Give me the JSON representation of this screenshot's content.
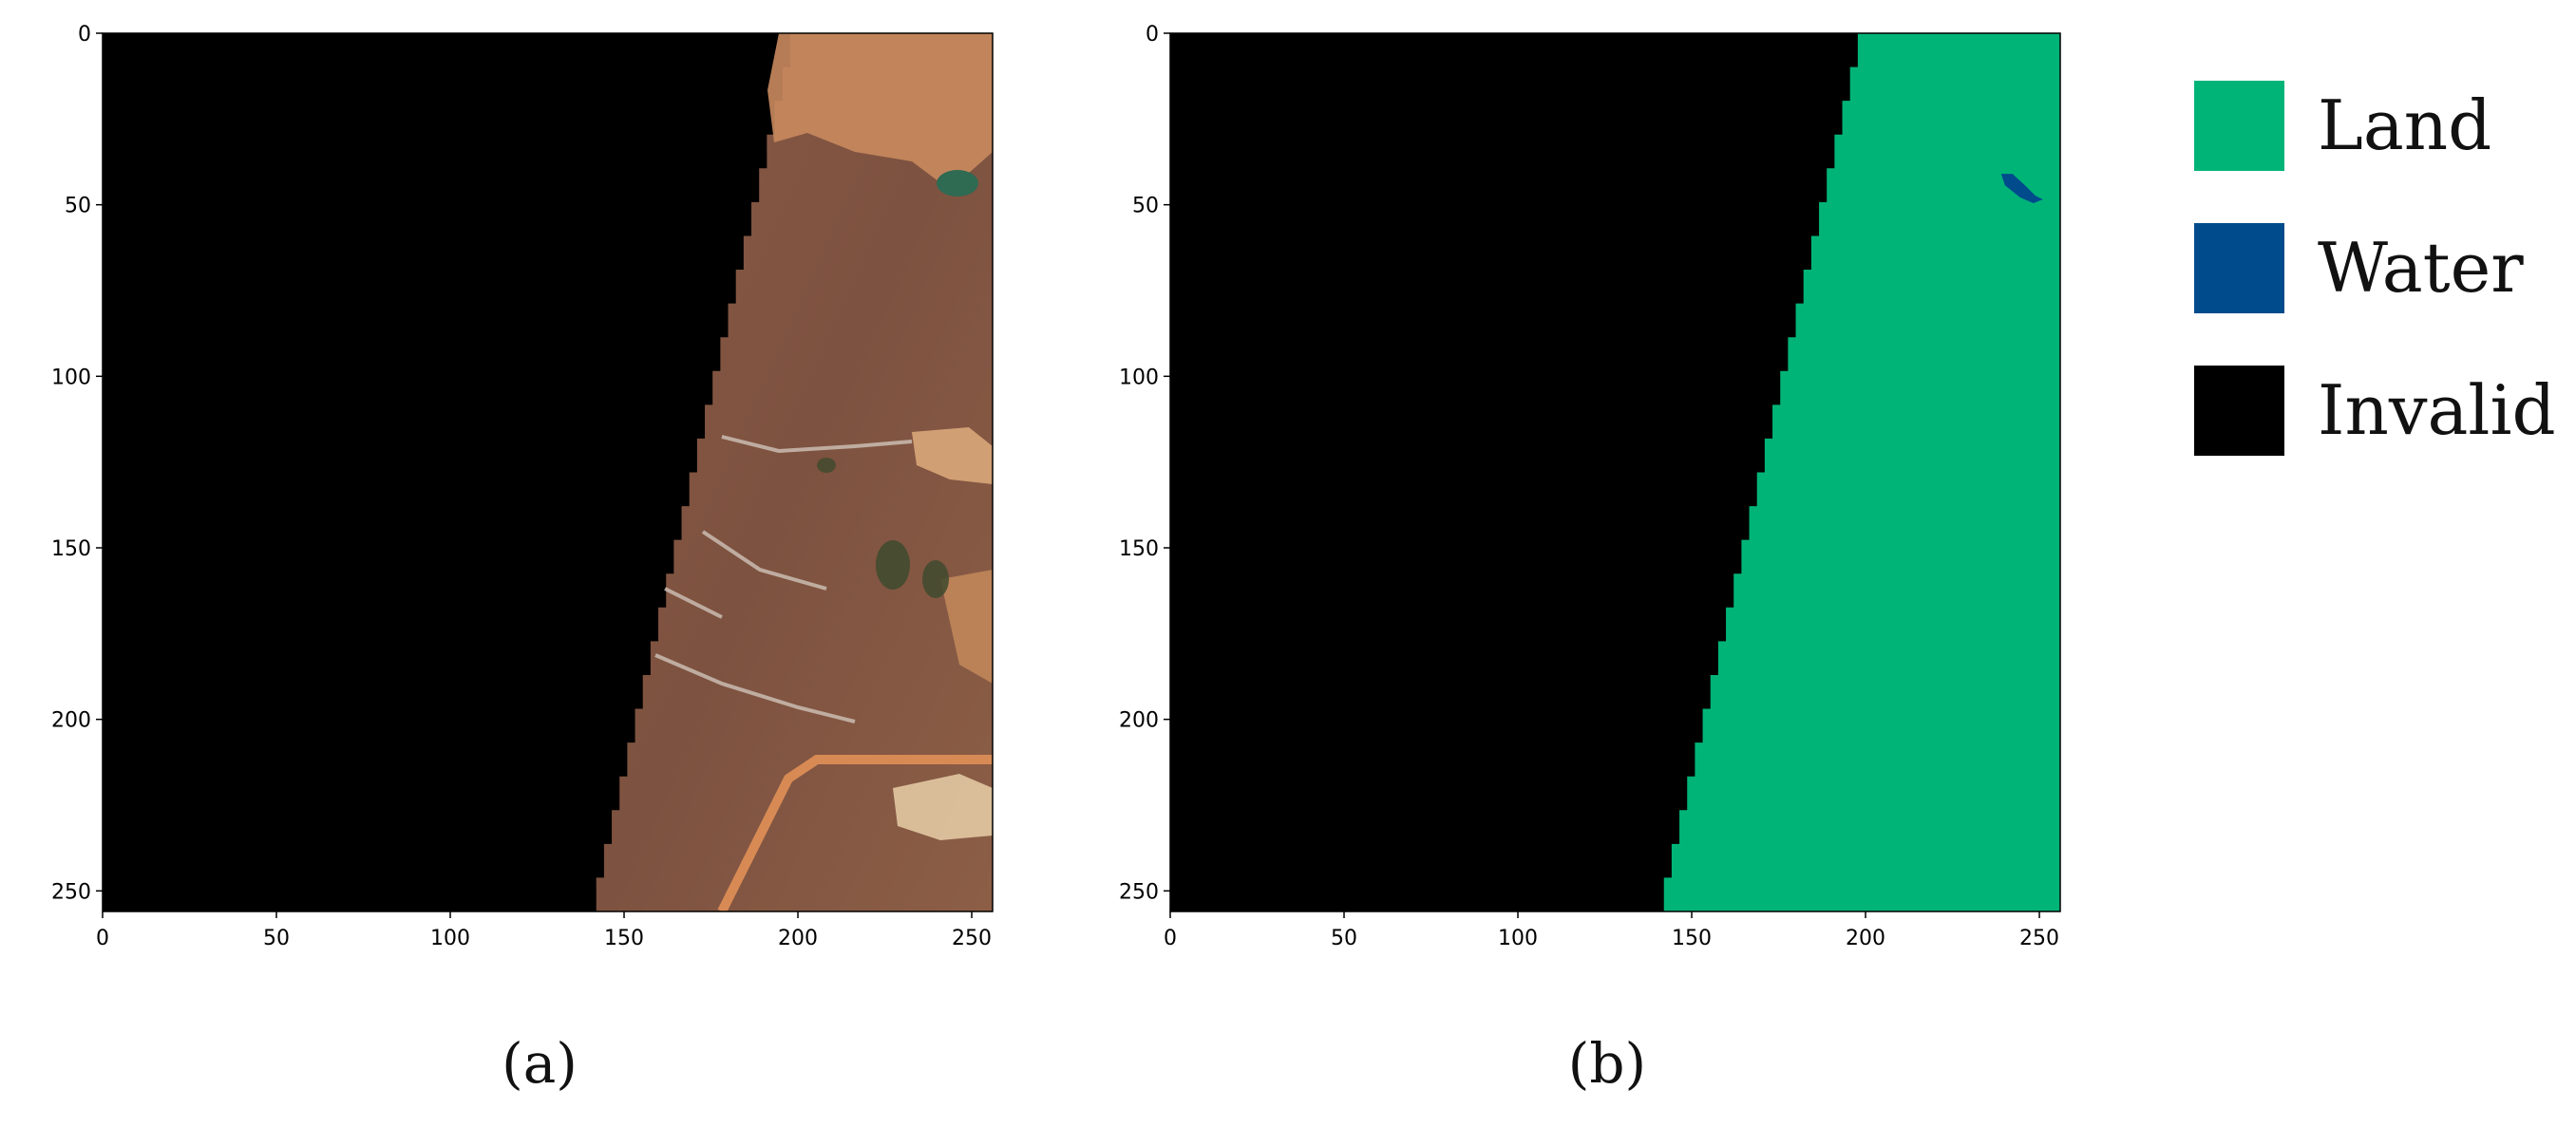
{
  "figure": {
    "panels": [
      {
        "id": "a",
        "caption": "(a)",
        "content": "satellite RGB composite (true color) with black no-data wedge",
        "x_ticks": [
          "0",
          "50",
          "100",
          "150",
          "200",
          "250"
        ],
        "y_ticks": [
          "0",
          "50",
          "100",
          "150",
          "200",
          "250"
        ],
        "xlim": [
          0,
          256
        ],
        "ylim": [
          256,
          0
        ],
        "valid_boundary": {
          "x_at_top": 200,
          "x_at_bottom": 142
        }
      },
      {
        "id": "b",
        "caption": "(b)",
        "content": "classification mask",
        "x_ticks": [
          "0",
          "50",
          "100",
          "150",
          "200",
          "250"
        ],
        "y_ticks": [
          "0",
          "50",
          "100",
          "150",
          "200",
          "250"
        ],
        "xlim": [
          0,
          256
        ],
        "ylim": [
          256,
          0
        ],
        "valid_boundary": {
          "x_at_top": 200,
          "x_at_bottom": 142
        },
        "water_patch": {
          "x": [
            239,
            251
          ],
          "y": [
            41,
            49
          ]
        }
      }
    ],
    "legend": [
      {
        "label": "Land",
        "color": "#00b478"
      },
      {
        "label": "Water",
        "color": "#004b8c"
      },
      {
        "label": "Invalid",
        "color": "#000000"
      }
    ]
  }
}
